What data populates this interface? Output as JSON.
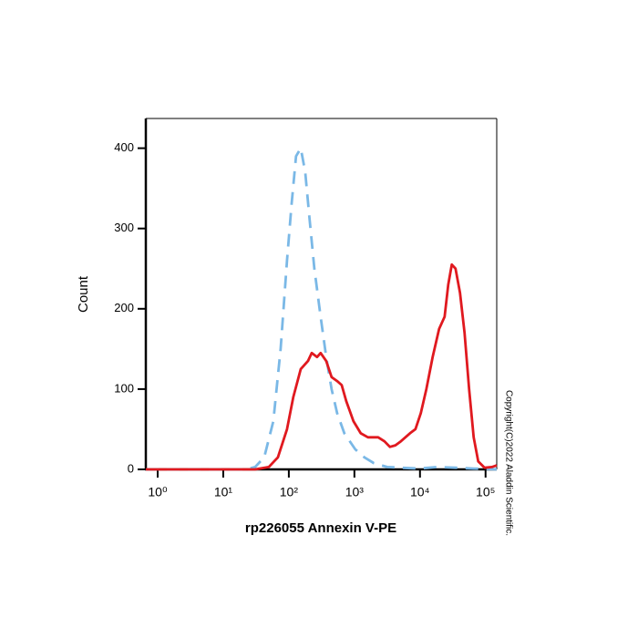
{
  "chart_data": {
    "type": "line",
    "x_label": "rp226055 Annexin V-PE",
    "y_label": "Count",
    "annotation": "Copyright(C)2022 Aladdin Scientific.",
    "xscale": "log",
    "xlim": [
      0.66,
      148000
    ],
    "ylim": [
      0,
      437
    ],
    "xticks": [
      {
        "value": 1,
        "label": "10⁰"
      },
      {
        "value": 10,
        "label": "10¹"
      },
      {
        "value": 100,
        "label": "10²"
      },
      {
        "value": 1000,
        "label": "10³"
      },
      {
        "value": 10000,
        "label": "10⁴"
      },
      {
        "value": 100000,
        "label": "10⁵"
      }
    ],
    "yticks": [
      0,
      100,
      200,
      300,
      400
    ],
    "series": [
      {
        "color": "#e0191f",
        "dash": false,
        "x": [
          0.66,
          30.6,
          49.5,
          68.1,
          93.8,
          117,
          152,
          196,
          223,
          270,
          306,
          371,
          449,
          545,
          640,
          750,
          968,
          1250,
          1610,
          2300,
          2870,
          3480,
          4220,
          5110,
          7030,
          8530,
          10300,
          12500,
          15600,
          19600,
          23700,
          27000,
          30600,
          34800,
          40800,
          47900,
          56200,
          65900,
          77400,
          96800,
          125000,
          148000
        ],
        "values": [
          0,
          0,
          3,
          15,
          50,
          90,
          125,
          135,
          145,
          140,
          145,
          135,
          115,
          110,
          105,
          85,
          60,
          45,
          40,
          40,
          35,
          28,
          30,
          35,
          45,
          50,
          70,
          100,
          140,
          175,
          190,
          230,
          255,
          250,
          220,
          170,
          100,
          40,
          10,
          2,
          3,
          5
        ]
      },
      {
        "color": "#7ab8e6",
        "dash": true,
        "x": [
          0.66,
          22.2,
          30.6,
          42.2,
          58.1,
          75,
          93.8,
          110,
          129,
          152,
          178,
          208,
          245,
          306,
          371,
          449,
          545,
          703,
          1030,
          1420,
          1960,
          3160,
          5110,
          9680,
          18400,
          34800,
          65900,
          148000
        ],
        "values": [
          0,
          0,
          3,
          15,
          60,
          150,
          260,
          330,
          390,
          400,
          370,
          310,
          250,
          190,
          140,
          100,
          70,
          45,
          25,
          15,
          8,
          3,
          2,
          1,
          3,
          2,
          1,
          0
        ]
      }
    ]
  }
}
